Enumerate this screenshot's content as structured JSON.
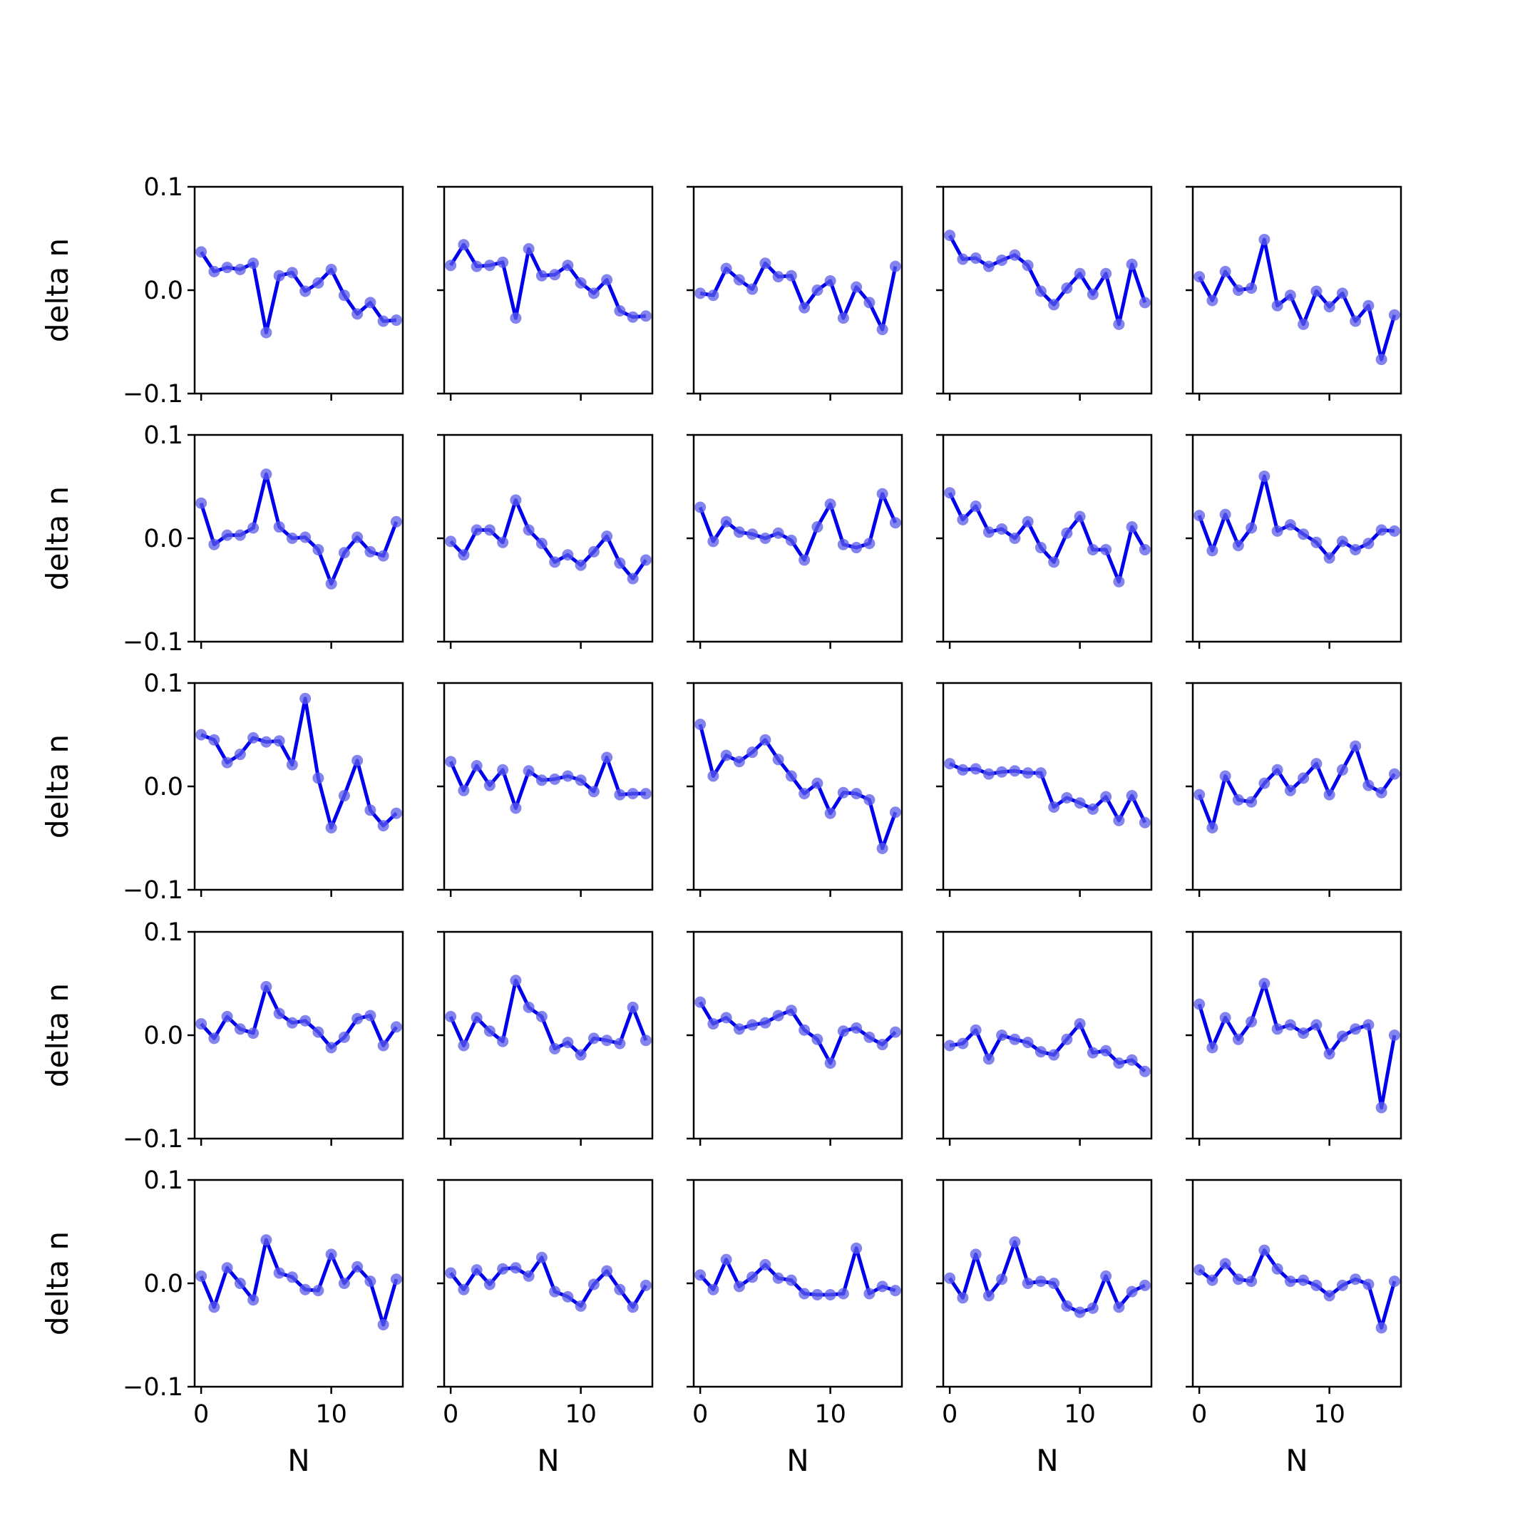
{
  "chart_data": {
    "type": "line",
    "layout": {
      "rows": 5,
      "cols": 5
    },
    "ylabel": "delta n",
    "xlabel": "N",
    "ylim": [
      -0.1,
      0.1
    ],
    "yticks": [
      -0.1,
      0.0,
      0.1
    ],
    "ytick_labels": [
      "−0.1",
      "0.0",
      "0.1"
    ],
    "xlim": [
      -0.5,
      15.5
    ],
    "xticks": [
      0,
      10
    ],
    "xtick_labels": [
      "0",
      "10"
    ],
    "grid": false,
    "line_color": "#0000ee",
    "marker_color": "#5b5bea",
    "x": [
      0,
      1,
      2,
      3,
      4,
      5,
      6,
      7,
      8,
      9,
      10,
      11,
      12,
      13,
      14,
      15
    ],
    "panels": [
      {
        "values": [
          0.037,
          0.018,
          0.022,
          0.02,
          0.026,
          -0.041,
          0.014,
          0.017,
          -0.001,
          0.007,
          0.02,
          -0.005,
          -0.023,
          -0.012,
          -0.03,
          -0.029
        ]
      },
      {
        "values": [
          0.024,
          0.044,
          0.023,
          0.024,
          0.027,
          -0.027,
          0.04,
          0.014,
          0.015,
          0.024,
          0.007,
          -0.003,
          0.01,
          -0.02,
          -0.026,
          -0.025
        ]
      },
      {
        "values": [
          -0.003,
          -0.005,
          0.021,
          0.01,
          0.001,
          0.026,
          0.013,
          0.014,
          -0.017,
          0.0,
          0.009,
          -0.027,
          0.003,
          -0.012,
          -0.038,
          0.023
        ]
      },
      {
        "values": [
          0.053,
          0.03,
          0.031,
          0.023,
          0.029,
          0.034,
          0.024,
          -0.001,
          -0.014,
          0.002,
          0.016,
          -0.004,
          0.016,
          -0.033,
          0.025,
          -0.012
        ]
      },
      {
        "values": [
          0.013,
          -0.01,
          0.018,
          0.0,
          0.002,
          0.049,
          -0.015,
          -0.005,
          -0.033,
          -0.001,
          -0.016,
          -0.003,
          -0.03,
          -0.015,
          -0.067,
          -0.024
        ]
      },
      {
        "values": [
          0.034,
          -0.006,
          0.003,
          0.003,
          0.01,
          0.062,
          0.011,
          0.0,
          0.001,
          -0.011,
          -0.044,
          -0.014,
          0.001,
          -0.013,
          -0.017,
          0.016
        ]
      },
      {
        "values": [
          -0.003,
          -0.016,
          0.008,
          0.008,
          -0.004,
          0.037,
          0.008,
          -0.005,
          -0.023,
          -0.016,
          -0.026,
          -0.013,
          0.002,
          -0.024,
          -0.039,
          -0.021
        ]
      },
      {
        "values": [
          0.03,
          -0.003,
          0.016,
          0.006,
          0.004,
          0.0,
          0.005,
          -0.002,
          -0.021,
          0.011,
          0.033,
          -0.006,
          -0.009,
          -0.005,
          0.043,
          0.015
        ]
      },
      {
        "values": [
          0.044,
          0.018,
          0.031,
          0.006,
          0.009,
          0.0,
          0.016,
          -0.009,
          -0.023,
          0.005,
          0.021,
          -0.011,
          -0.011,
          -0.042,
          0.011,
          -0.011
        ]
      },
      {
        "values": [
          0.022,
          -0.012,
          0.023,
          -0.007,
          0.01,
          0.06,
          0.007,
          0.013,
          0.004,
          -0.004,
          -0.019,
          -0.003,
          -0.011,
          -0.005,
          0.008,
          0.007
        ]
      },
      {
        "values": [
          0.05,
          0.045,
          0.023,
          0.031,
          0.047,
          0.043,
          0.044,
          0.021,
          0.085,
          0.008,
          -0.04,
          -0.009,
          0.025,
          -0.023,
          -0.038,
          -0.026
        ]
      },
      {
        "values": [
          0.024,
          -0.004,
          0.02,
          0.001,
          0.016,
          -0.021,
          0.015,
          0.006,
          0.007,
          0.01,
          0.006,
          -0.005,
          0.028,
          -0.008,
          -0.007,
          -0.007
        ]
      },
      {
        "values": [
          0.06,
          0.01,
          0.03,
          0.024,
          0.033,
          0.045,
          0.026,
          0.01,
          -0.007,
          0.003,
          -0.026,
          -0.006,
          -0.007,
          -0.013,
          -0.06,
          -0.025
        ]
      },
      {
        "values": [
          0.022,
          0.016,
          0.017,
          0.012,
          0.014,
          0.015,
          0.013,
          0.013,
          -0.02,
          -0.011,
          -0.016,
          -0.022,
          -0.01,
          -0.033,
          -0.009,
          -0.035
        ]
      },
      {
        "values": [
          -0.008,
          -0.04,
          0.01,
          -0.013,
          -0.015,
          0.003,
          0.016,
          -0.004,
          0.008,
          0.022,
          -0.008,
          0.016,
          0.039,
          0.001,
          -0.006,
          0.012
        ]
      },
      {
        "values": [
          0.011,
          -0.003,
          0.018,
          0.006,
          0.002,
          0.047,
          0.021,
          0.012,
          0.014,
          0.003,
          -0.012,
          -0.002,
          0.016,
          0.019,
          -0.01,
          0.008
        ]
      },
      {
        "values": [
          0.018,
          -0.01,
          0.017,
          0.004,
          -0.006,
          0.053,
          0.027,
          0.018,
          -0.013,
          -0.007,
          -0.019,
          -0.003,
          -0.005,
          -0.008,
          0.027,
          -0.005
        ]
      },
      {
        "values": [
          0.032,
          0.011,
          0.017,
          0.006,
          0.01,
          0.012,
          0.019,
          0.024,
          0.005,
          -0.004,
          -0.027,
          0.004,
          0.007,
          -0.002,
          -0.009,
          0.003
        ]
      },
      {
        "values": [
          -0.01,
          -0.008,
          0.005,
          -0.023,
          0.0,
          -0.004,
          -0.007,
          -0.016,
          -0.019,
          -0.004,
          0.011,
          -0.017,
          -0.015,
          -0.027,
          -0.024,
          -0.035
        ]
      },
      {
        "values": [
          0.03,
          -0.012,
          0.017,
          -0.004,
          0.013,
          0.05,
          0.006,
          0.01,
          0.002,
          0.01,
          -0.018,
          -0.001,
          0.006,
          0.01,
          -0.07,
          0.0
        ]
      },
      {
        "values": [
          0.007,
          -0.023,
          0.015,
          0.0,
          -0.016,
          0.042,
          0.01,
          0.006,
          -0.006,
          -0.007,
          0.028,
          0.0,
          0.016,
          0.002,
          -0.04,
          0.004
        ]
      },
      {
        "values": [
          0.01,
          -0.006,
          0.013,
          -0.001,
          0.014,
          0.015,
          0.007,
          0.025,
          -0.008,
          -0.013,
          -0.022,
          -0.001,
          0.012,
          -0.006,
          -0.023,
          -0.002
        ]
      },
      {
        "values": [
          0.008,
          -0.006,
          0.023,
          -0.003,
          0.006,
          0.018,
          0.005,
          0.003,
          -0.01,
          -0.011,
          -0.011,
          -0.01,
          0.034,
          -0.01,
          -0.003,
          -0.007
        ]
      },
      {
        "values": [
          0.005,
          -0.014,
          0.028,
          -0.012,
          0.004,
          0.04,
          0.0,
          0.002,
          0.0,
          -0.022,
          -0.028,
          -0.024,
          0.007,
          -0.023,
          -0.008,
          -0.002
        ]
      },
      {
        "values": [
          0.013,
          0.003,
          0.019,
          0.004,
          0.002,
          0.032,
          0.014,
          0.002,
          0.003,
          -0.002,
          -0.012,
          -0.002,
          0.004,
          -0.001,
          -0.043,
          0.002
        ]
      }
    ]
  }
}
